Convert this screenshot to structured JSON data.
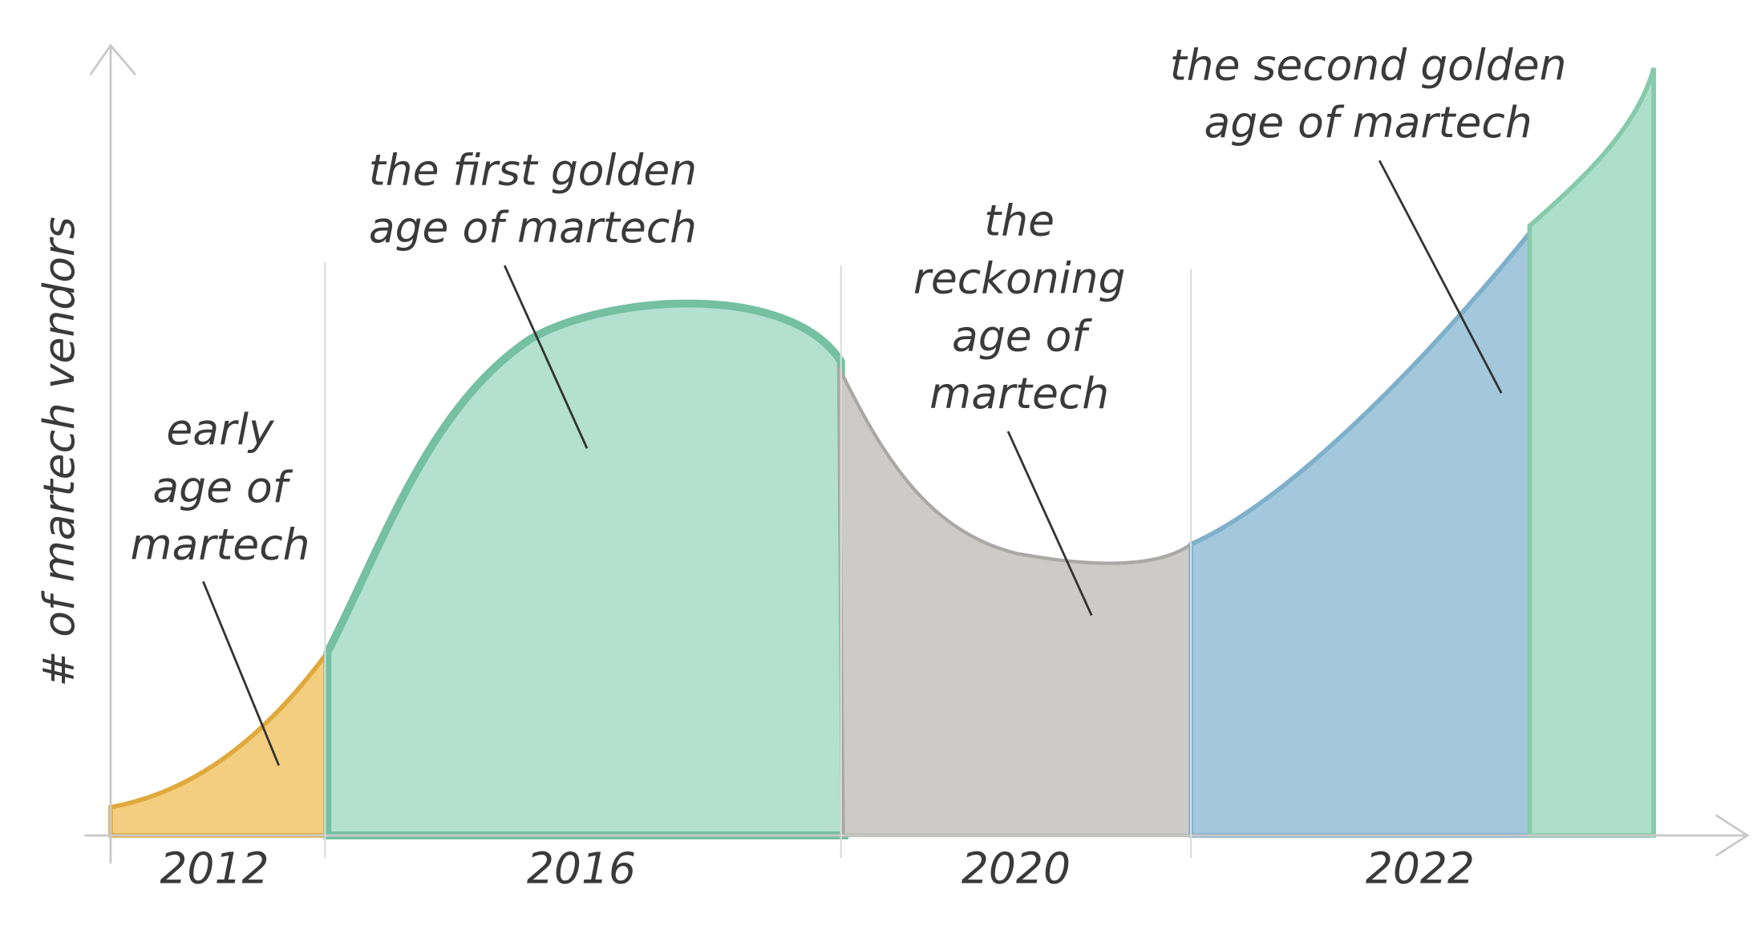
{
  "axis_label": "# of martech vendors",
  "eras": [
    {
      "label_lines": [
        "early",
        "age of",
        "martech"
      ],
      "period": "2012"
    },
    {
      "label_lines": [
        "the first golden",
        "age of martech"
      ],
      "period": "2016"
    },
    {
      "label_lines": [
        "the",
        "reckoning",
        "age of",
        "martech"
      ],
      "period": "2020"
    },
    {
      "label_lines": [
        "the second golden",
        "age of martech"
      ],
      "period": "2022"
    }
  ]
}
